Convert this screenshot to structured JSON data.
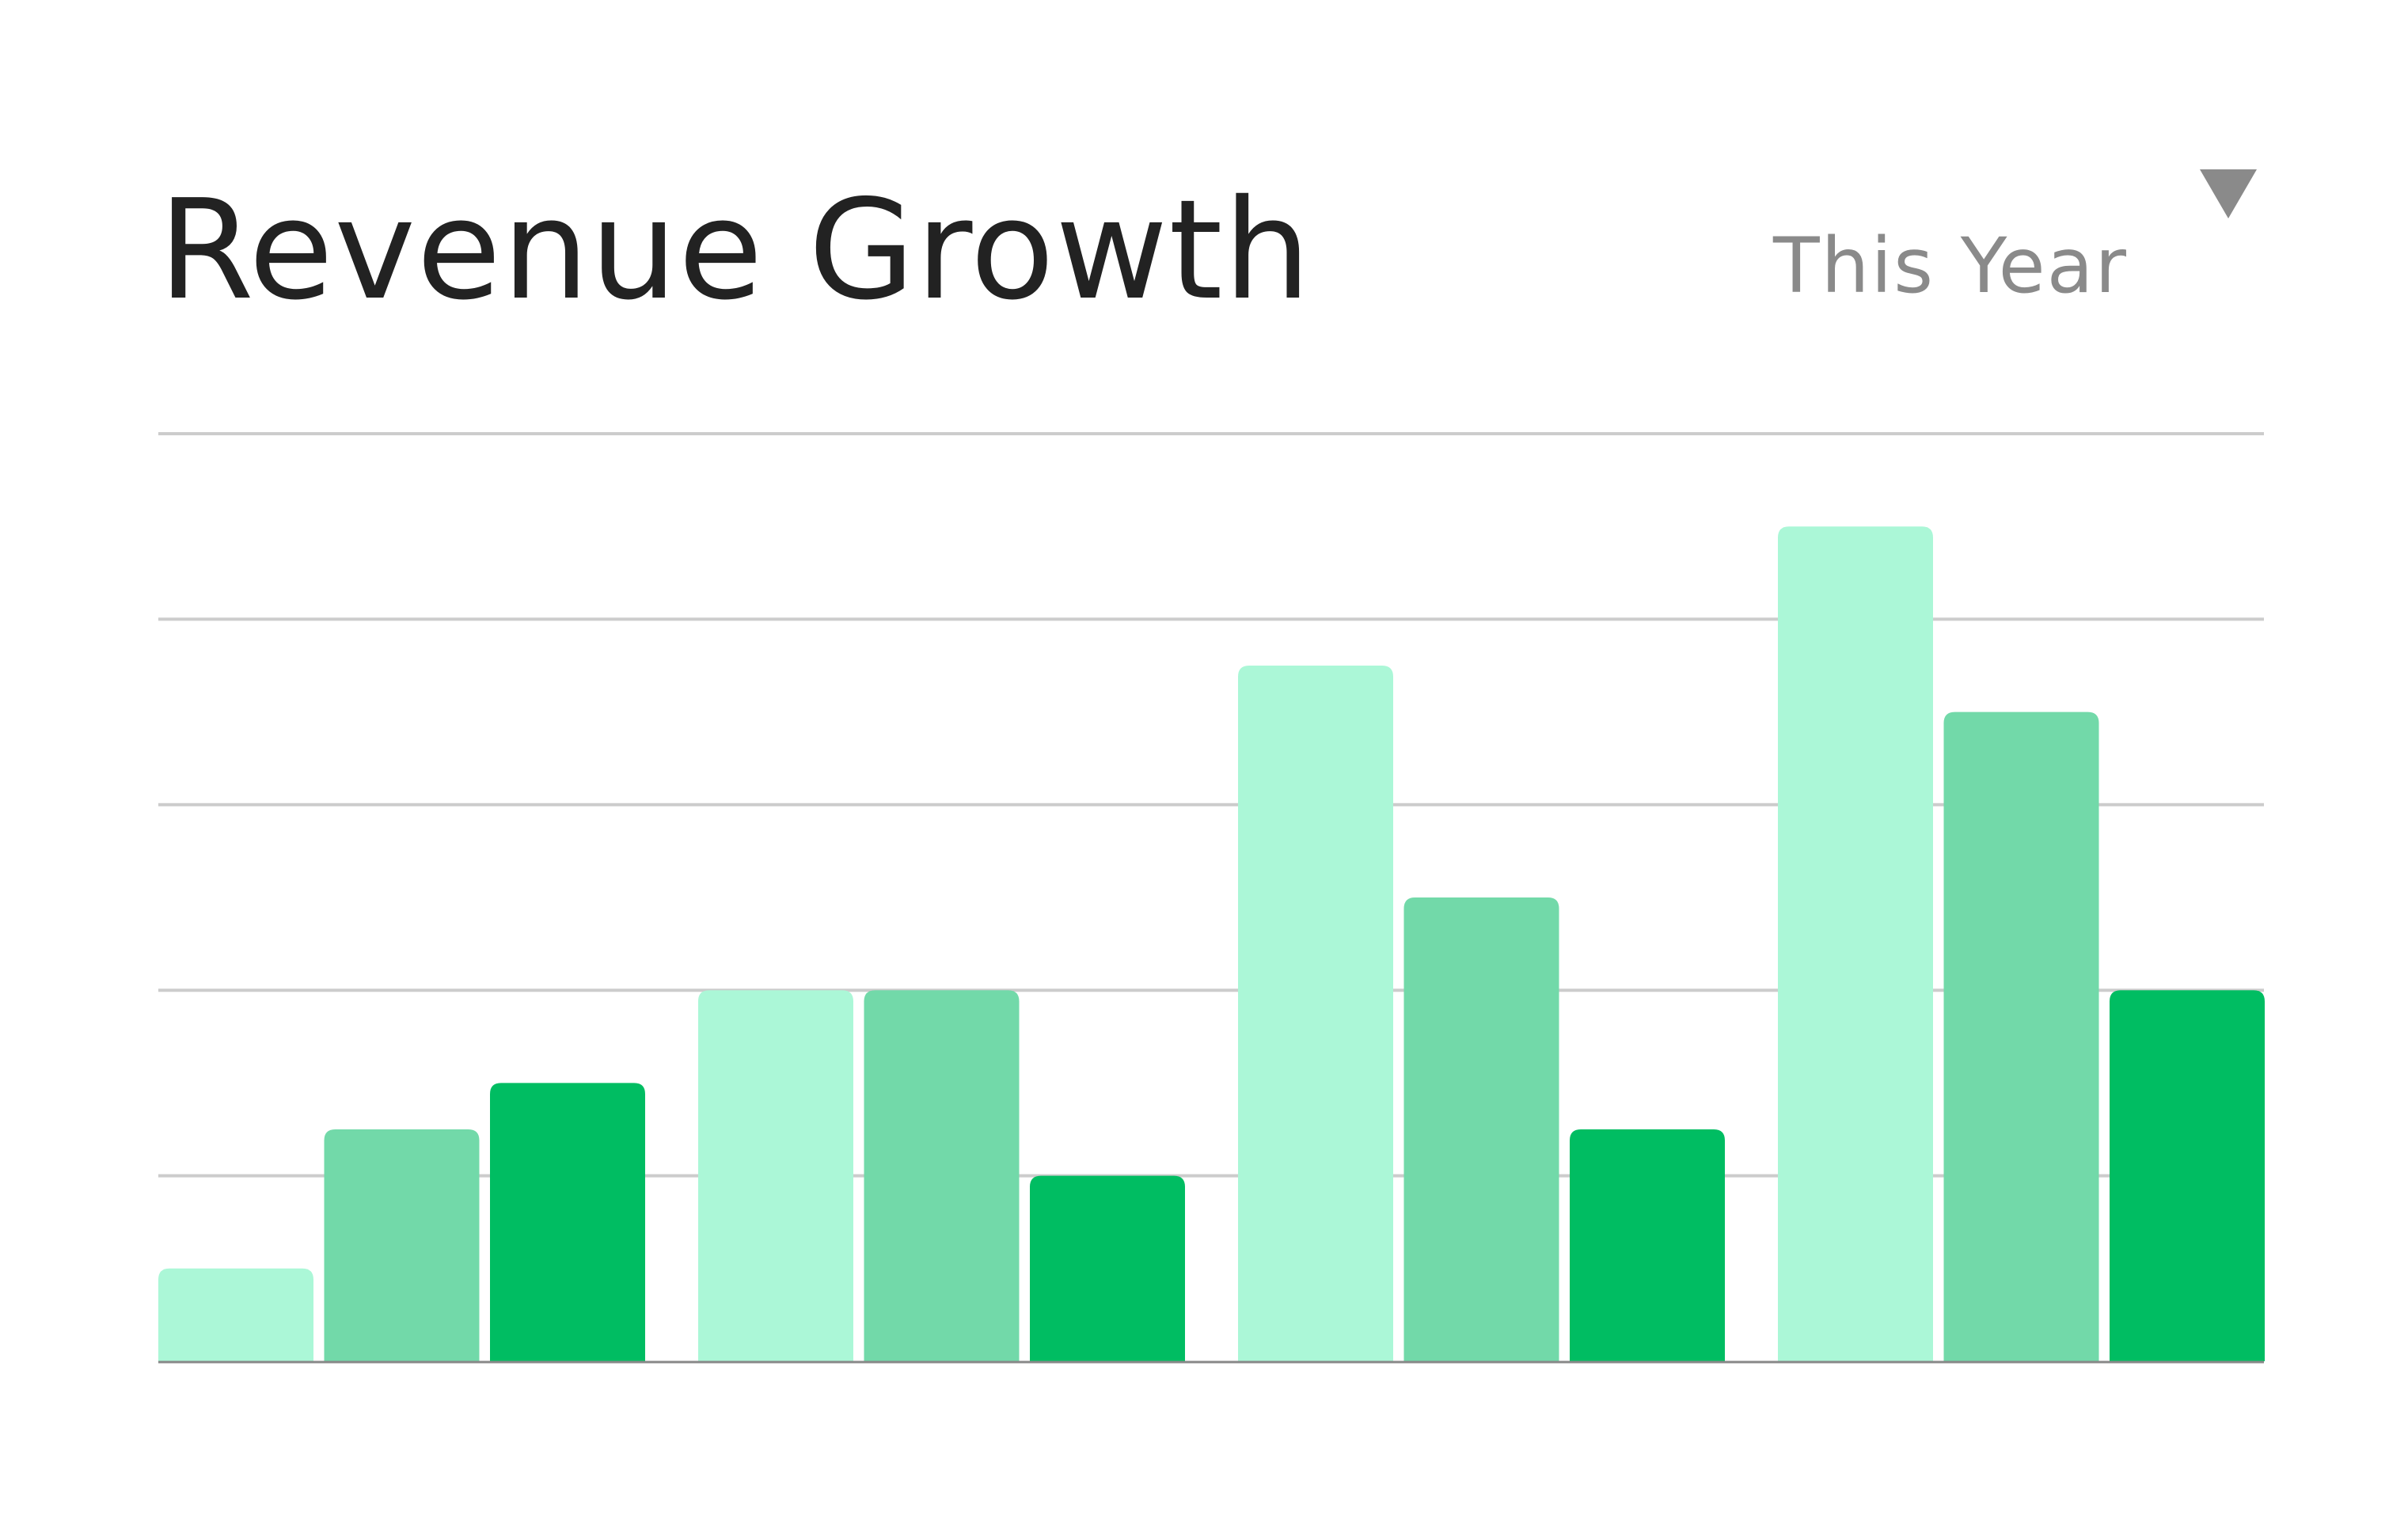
{
  "title": "Revenue Growth",
  "period_selector": {
    "label": "This Year",
    "icon": "triangle-down-icon"
  },
  "colors": {
    "background": "#ffffff",
    "title": "#222222",
    "selector_text": "#8a8a8a",
    "dropdown_icon": "#8a8a8a",
    "gridline": "#cccccc",
    "axis": "#888888"
  },
  "chart_data": {
    "type": "bar",
    "title": "Revenue Growth",
    "xlabel": "",
    "ylabel": "",
    "categories": [
      "",
      "",
      "",
      ""
    ],
    "ylim": [
      0,
      10
    ],
    "grid": true,
    "legend": "none",
    "series": [
      {
        "color": "#abf7d7",
        "values": [
          1,
          4,
          7.5,
          9
        ]
      },
      {
        "color": "#72d9a9",
        "values": [
          2.5,
          4,
          5,
          7
        ]
      },
      {
        "color": "#00bd62",
        "values": [
          3,
          2,
          2.5,
          4
        ]
      }
    ]
  }
}
